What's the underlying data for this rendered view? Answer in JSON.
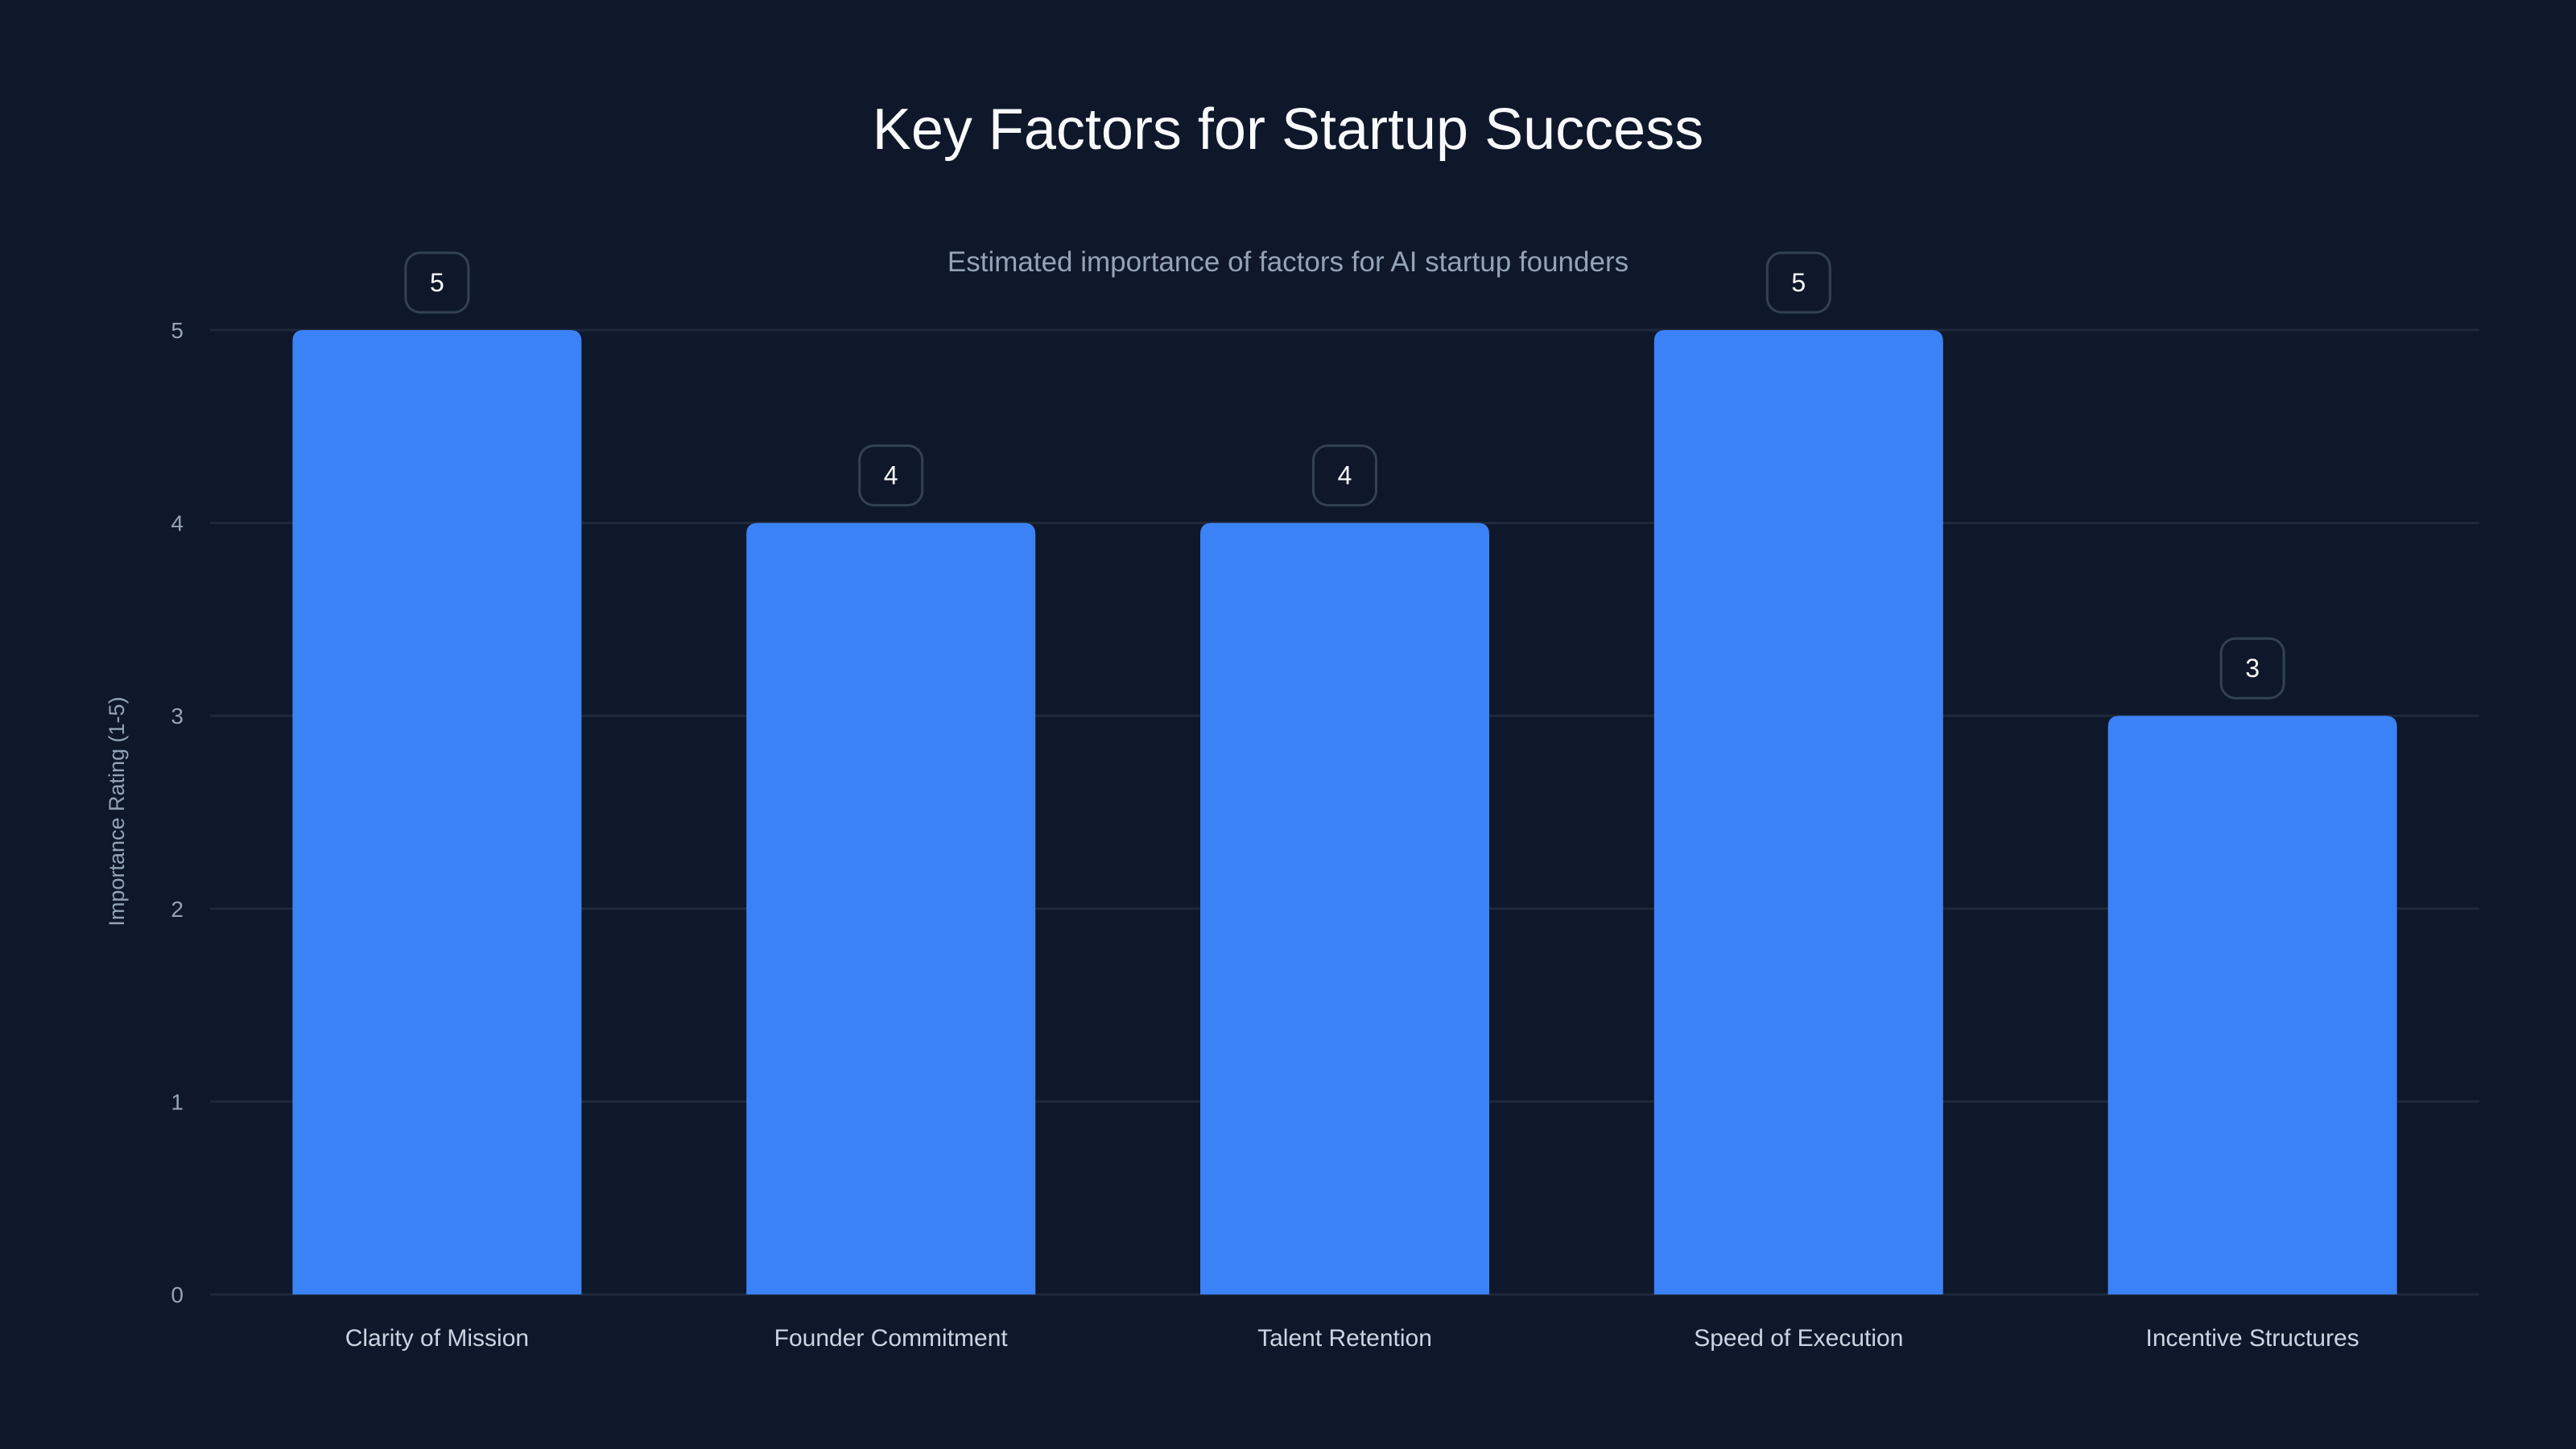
{
  "chart_data": {
    "type": "bar",
    "title": "Key Factors for Startup Success",
    "subtitle": "Estimated importance of factors for AI startup founders",
    "xlabel": "",
    "ylabel": "Importance Rating (1-5)",
    "categories": [
      "Clarity of Mission",
      "Founder Commitment",
      "Talent Retention",
      "Speed of Execution",
      "Incentive Structures"
    ],
    "values": [
      5,
      4,
      4,
      5,
      3
    ],
    "ylim": [
      0,
      5
    ],
    "yticks": [
      0,
      1,
      2,
      3,
      4,
      5
    ],
    "grid": true,
    "legend": "none",
    "colors": {
      "background": "#0f172a",
      "bar": "#3b82f6",
      "grid": "#1e293b",
      "tick": "#94a3b8",
      "label": "#cbd5e1",
      "badge_border": "#334155"
    }
  }
}
